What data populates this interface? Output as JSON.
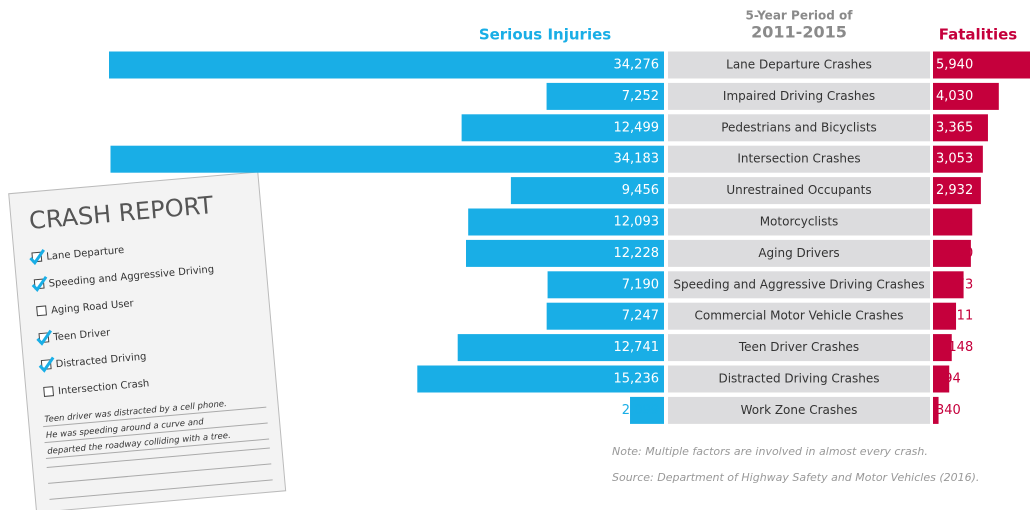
{
  "chart_data": {
    "type": "bar",
    "subtitle": "5-Year Period of",
    "period": "2011-2015",
    "categories": [
      "Lane Departure Crashes",
      "Impaired Driving Crashes",
      "Pedestrians and Bicyclists",
      "Intersection Crashes",
      "Unrestrained Occupants",
      "Motorcyclists",
      "Aging Drivers",
      "Speeding and Aggressive Driving Crashes",
      "Commercial Motor Vehicle Crashes",
      "Teen Driver Crashes",
      "Distracted Driving Crashes",
      "Work Zone Crashes"
    ],
    "series": [
      {
        "name": "Serious Injuries",
        "color": "#19aee6",
        "values": [
          34276,
          7252,
          12499,
          34183,
          9456,
          12093,
          12228,
          7190,
          7247,
          12741,
          15236,
          2099
        ],
        "value_labels": [
          "34,276",
          "7,252",
          "12,499",
          "34,183",
          "9,456",
          "12,093",
          "12,228",
          "7,190",
          "7,247",
          "12,741",
          "15,236",
          "2,099"
        ]
      },
      {
        "name": "Fatalities",
        "color": "#c5003c",
        "values": [
          5940,
          4030,
          3365,
          3053,
          2932,
          2402,
          2320,
          1873,
          1411,
          1148,
          994,
          340
        ],
        "value_labels": [
          "5,940",
          "4,030",
          "3,365",
          "3,053",
          "2,932",
          "2,402",
          "2,320",
          "1,873",
          "1,411",
          "1,148",
          "994",
          "340"
        ]
      }
    ],
    "notes": [
      "Note:  Multiple factors are involved in almost every crash.",
      "Source: Department of Highway Safety and Motor Vehicles (2016)."
    ]
  },
  "crash_report": {
    "title": "CRASH REPORT",
    "items": [
      {
        "label": "Lane Departure",
        "checked": true
      },
      {
        "label": "Speeding and Aggressive Driving",
        "checked": true
      },
      {
        "label": "Aging Road User",
        "checked": false
      },
      {
        "label": "Teen Driver",
        "checked": true
      },
      {
        "label": "Distracted Driving",
        "checked": true
      },
      {
        "label": "Intersection Crash",
        "checked": false
      }
    ],
    "note": [
      "Teen driver was distracted by a cell phone.",
      "He was speeding around a curve and",
      "departed the roadway colliding with a tree."
    ]
  }
}
